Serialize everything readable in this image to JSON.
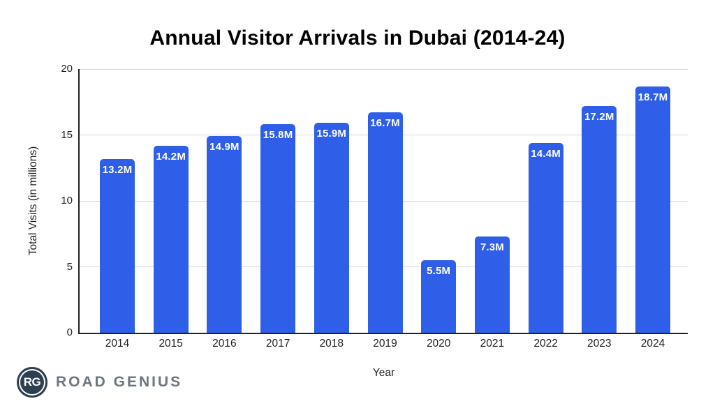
{
  "chart_data": {
    "type": "bar",
    "title": "Annual Visitor Arrivals in Dubai (2014-24)",
    "categories": [
      "2014",
      "2015",
      "2016",
      "2017",
      "2018",
      "2019",
      "2020",
      "2021",
      "2022",
      "2023",
      "2024"
    ],
    "values": [
      13.2,
      14.2,
      14.9,
      15.8,
      15.9,
      16.7,
      5.5,
      7.3,
      14.4,
      17.2,
      18.7
    ],
    "bar_labels": [
      "13.2M",
      "14.2M",
      "14.9M",
      "15.8M",
      "15.9M",
      "16.7M",
      "5.5M",
      "7.3M",
      "14.4M",
      "17.2M",
      "18.7M"
    ],
    "xlabel": "Year",
    "ylabel": "Total Visits (in millions)",
    "ylim": [
      0,
      20
    ],
    "yticks": [
      0,
      5,
      10,
      15,
      20
    ],
    "grid": true,
    "legend": "none",
    "bar_color": "#2F5FE8",
    "bar_label_color": "#ffffff"
  },
  "colors": {
    "axis": "#212121",
    "gridline": "#d9d9d9",
    "tick_text": "#1f1f1f",
    "title_text": "#000000",
    "background": "#ffffff"
  },
  "branding": {
    "monogram": "RG",
    "name": "ROAD GENIUS",
    "circle_color": "#2e3f4f",
    "text_color": "#6b7680"
  }
}
